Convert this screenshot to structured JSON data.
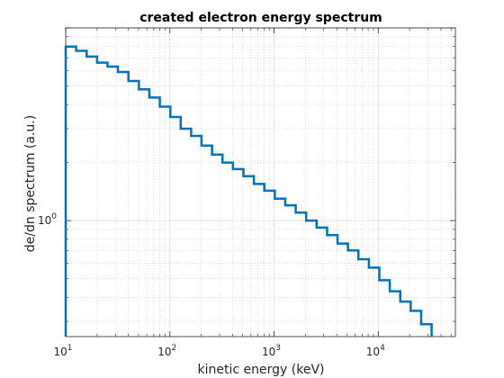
{
  "chart_data": {
    "type": "line",
    "style": "stairs",
    "title": "created electron energy spectrum",
    "xlabel": "kinetic energy (keV)",
    "ylabel": "de/dn spectrum (a.u.)",
    "xscale": "log",
    "yscale": "log",
    "xlim": [
      10,
      55000
    ],
    "ylim": [
      0.25,
      10
    ],
    "grid": true,
    "minor_grid": true,
    "line_color": "#0072bd",
    "x_ticks": [
      {
        "base": "10",
        "exp": "1",
        "value": 10
      },
      {
        "base": "10",
        "exp": "2",
        "value": 100
      },
      {
        "base": "10",
        "exp": "3",
        "value": 1000
      },
      {
        "base": "10",
        "exp": "4",
        "value": 10000
      }
    ],
    "y_ticks": [
      {
        "base": "10",
        "exp": "0",
        "value": 1
      }
    ],
    "series": [
      {
        "edges": [
          10,
          12.6,
          15.9,
          20,
          25.2,
          31.7,
          40,
          50.4,
          63.5,
          80,
          101,
          127,
          160,
          201,
          254,
          320,
          403,
          508,
          640,
          806,
          1016,
          1280,
          1613,
          2032,
          2560,
          3226,
          4064,
          5120,
          6451,
          8128,
          10240,
          12902,
          16256,
          20480,
          25805,
          32512
        ],
        "values": [
          8.0,
          7.6,
          7.1,
          6.6,
          6.3,
          5.9,
          5.3,
          4.8,
          4.35,
          3.9,
          3.45,
          3.0,
          2.75,
          2.45,
          2.2,
          2.0,
          1.85,
          1.7,
          1.55,
          1.43,
          1.3,
          1.2,
          1.1,
          1.0,
          0.92,
          0.84,
          0.76,
          0.7,
          0.63,
          0.57,
          0.49,
          0.43,
          0.38,
          0.34,
          0.29
        ]
      }
    ]
  }
}
